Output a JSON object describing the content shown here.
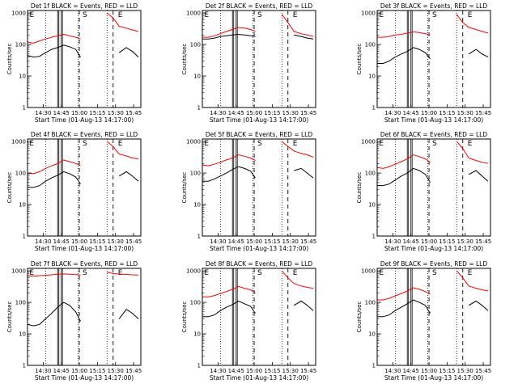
{
  "figure": {
    "xlabel": "Start Time (01-Aug-13 14:17:00)",
    "ylabel": "Counts/sec",
    "x_tick_labels": [
      "14:30",
      "14:45",
      "15:00",
      "15:15",
      "15:30",
      "15:45"
    ],
    "y_tick_labels": [
      "1",
      "10",
      "100",
      "1000"
    ]
  },
  "colors": {
    "events": "#000000",
    "lld": "#ff0000",
    "axis": "#000000"
  },
  "chart_data": [
    {
      "type": "line",
      "title": "Det 1f BLACK = Events, RED = LLD",
      "x": [
        "14:17",
        "14:22",
        "14:27",
        "14:32",
        "14:37",
        "14:42",
        "14:47",
        "14:52",
        "14:57",
        "15:01",
        "15:07",
        "15:13",
        "15:18",
        "15:23",
        "15:28",
        "15:33",
        "15:39",
        "15:44",
        "15:49"
      ],
      "series": [
        {
          "name": "Events",
          "values": [
            45,
            40,
            42,
            55,
            70,
            80,
            95,
            85,
            70,
            40,
            null,
            null,
            null,
            null,
            null,
            55,
            80,
            60,
            40
          ]
        },
        {
          "name": "LLD",
          "values": [
            120,
            110,
            130,
            150,
            170,
            190,
            210,
            190,
            170,
            150,
            null,
            null,
            null,
            1000,
            700,
            380,
            330,
            290,
            260
          ]
        }
      ],
      "xlim": [
        "14:17",
        "15:51"
      ],
      "ylim": [
        1,
        1200
      ],
      "yscale": "log",
      "vlines_dotted": [
        "14:32",
        "14:59",
        "15:23"
      ],
      "vlines_solid": [
        "14:42",
        "14:43",
        "14:45",
        "14:46"
      ],
      "vlines_dashed": [
        "15:00",
        "15:28"
      ],
      "annotations": [
        "E",
        "S",
        "E"
      ]
    },
    {
      "type": "line",
      "title": "Det 2f BLACK = Events, RED = LLD",
      "x": [
        "14:17",
        "14:22",
        "14:27",
        "14:32",
        "14:37",
        "14:42",
        "14:47",
        "14:52",
        "14:57",
        "15:01",
        "15:07",
        "15:13",
        "15:18",
        "15:23",
        "15:28",
        "15:33",
        "15:39",
        "15:44",
        "15:49"
      ],
      "series": [
        {
          "name": "Events",
          "values": [
            150,
            150,
            160,
            180,
            190,
            200,
            210,
            200,
            190,
            180,
            null,
            null,
            null,
            null,
            null,
            200,
            180,
            160,
            150
          ]
        },
        {
          "name": "LLD",
          "values": [
            170,
            170,
            190,
            220,
            260,
            300,
            350,
            330,
            300,
            260,
            null,
            null,
            null,
            900,
            500,
            260,
            220,
            200,
            180
          ]
        }
      ],
      "xlim": [
        "14:17",
        "15:51"
      ],
      "ylim": [
        1,
        1200
      ],
      "yscale": "log",
      "vlines_dotted": [
        "14:32",
        "14:59",
        "15:23"
      ],
      "vlines_solid": [
        "14:42",
        "14:43",
        "14:45",
        "14:46"
      ],
      "vlines_dashed": [
        "15:00",
        "15:28"
      ],
      "annotations": [
        "E",
        "S",
        "E"
      ]
    },
    {
      "type": "line",
      "title": "Det 3f BLACK = Events, RED = LLD",
      "x": [
        "14:17",
        "14:22",
        "14:27",
        "14:32",
        "14:37",
        "14:42",
        "14:47",
        "14:52",
        "14:57",
        "15:01",
        "15:07",
        "15:13",
        "15:18",
        "15:23",
        "15:28",
        "15:33",
        "15:39",
        "15:44",
        "15:49"
      ],
      "series": [
        {
          "name": "Events",
          "values": [
            25,
            25,
            30,
            40,
            50,
            60,
            80,
            70,
            55,
            35,
            null,
            null,
            null,
            null,
            null,
            50,
            70,
            50,
            40
          ]
        },
        {
          "name": "LLD",
          "values": [
            170,
            170,
            180,
            200,
            210,
            230,
            250,
            240,
            220,
            200,
            null,
            null,
            null,
            900,
            500,
            350,
            300,
            260,
            230
          ]
        }
      ],
      "xlim": [
        "14:17",
        "15:51"
      ],
      "ylim": [
        1,
        1200
      ],
      "yscale": "log",
      "vlines_dotted": [
        "14:32",
        "14:59",
        "15:23"
      ],
      "vlines_solid": [
        "14:42",
        "14:43",
        "14:45",
        "14:46"
      ],
      "vlines_dashed": [
        "15:00",
        "15:28"
      ],
      "annotations": [
        "E",
        "S",
        "E"
      ]
    },
    {
      "type": "line",
      "title": "Det 4f BLACK = Events, RED = LLD",
      "x": [
        "14:17",
        "14:22",
        "14:27",
        "14:32",
        "14:37",
        "14:42",
        "14:47",
        "14:52",
        "14:57",
        "15:01",
        "15:07",
        "15:13",
        "15:18",
        "15:23",
        "15:28",
        "15:33",
        "15:39",
        "15:44",
        "15:49"
      ],
      "series": [
        {
          "name": "Events",
          "values": [
            35,
            35,
            40,
            55,
            70,
            85,
            110,
            95,
            75,
            45,
            null,
            null,
            null,
            null,
            null,
            80,
            110,
            80,
            55
          ]
        },
        {
          "name": "LLD",
          "values": [
            100,
            95,
            110,
            140,
            170,
            200,
            260,
            230,
            200,
            170,
            null,
            null,
            null,
            1000,
            700,
            400,
            350,
            300,
            280
          ]
        }
      ],
      "xlim": [
        "14:17",
        "15:51"
      ],
      "ylim": [
        1,
        1200
      ],
      "yscale": "log",
      "vlines_dotted": [
        "14:32",
        "14:59",
        "15:23"
      ],
      "vlines_solid": [
        "14:42",
        "14:43",
        "14:45",
        "14:46"
      ],
      "vlines_dashed": [
        "15:00",
        "15:28"
      ],
      "annotations": [
        "E",
        "S",
        "E"
      ]
    },
    {
      "type": "line",
      "title": "Det 5f BLACK = Events, RED = LLD",
      "x": [
        "14:17",
        "14:22",
        "14:27",
        "14:32",
        "14:37",
        "14:42",
        "14:47",
        "14:52",
        "14:57",
        "15:01",
        "15:07",
        "15:13",
        "15:18",
        "15:23",
        "15:28",
        "15:33",
        "15:39",
        "15:44",
        "15:49"
      ],
      "series": [
        {
          "name": "Events",
          "values": [
            55,
            55,
            65,
            80,
            100,
            130,
            160,
            140,
            115,
            70,
            null,
            null,
            null,
            null,
            null,
            120,
            140,
            100,
            70
          ]
        },
        {
          "name": "LLD",
          "values": [
            180,
            170,
            190,
            220,
            260,
            300,
            380,
            340,
            300,
            250,
            null,
            null,
            null,
            1000,
            700,
            500,
            420,
            380,
            320
          ]
        }
      ],
      "xlim": [
        "14:17",
        "15:51"
      ],
      "ylim": [
        1,
        1200
      ],
      "yscale": "log",
      "vlines_dotted": [
        "14:32",
        "14:59",
        "15:23"
      ],
      "vlines_solid": [
        "14:42",
        "14:43",
        "14:45",
        "14:46"
      ],
      "vlines_dashed": [
        "15:00",
        "15:28"
      ],
      "annotations": [
        "E",
        "S",
        "E"
      ]
    },
    {
      "type": "line",
      "title": "Det 6f BLACK = Events, RED = LLD",
      "x": [
        "14:17",
        "14:22",
        "14:27",
        "14:32",
        "14:37",
        "14:42",
        "14:47",
        "14:52",
        "14:57",
        "15:01",
        "15:07",
        "15:13",
        "15:18",
        "15:23",
        "15:28",
        "15:33",
        "15:39",
        "15:44",
        "15:49"
      ],
      "series": [
        {
          "name": "Events",
          "values": [
            40,
            40,
            45,
            60,
            80,
            100,
            140,
            120,
            90,
            50,
            null,
            null,
            null,
            null,
            null,
            90,
            120,
            80,
            55
          ]
        },
        {
          "name": "LLD",
          "values": [
            150,
            140,
            160,
            190,
            230,
            280,
            380,
            330,
            280,
            220,
            null,
            null,
            null,
            1000,
            600,
            300,
            250,
            220,
            200
          ]
        }
      ],
      "xlim": [
        "14:17",
        "15:51"
      ],
      "ylim": [
        1,
        1200
      ],
      "yscale": "log",
      "vlines_dotted": [
        "14:32",
        "14:59",
        "15:23"
      ],
      "vlines_solid": [
        "14:42",
        "14:43",
        "14:45",
        "14:46"
      ],
      "vlines_dashed": [
        "15:00",
        "15:28"
      ],
      "annotations": [
        "E",
        "S",
        "E"
      ]
    },
    {
      "type": "line",
      "title": "Det 7f BLACK = Events, RED = LLD",
      "x": [
        "14:17",
        "14:22",
        "14:27",
        "14:32",
        "14:37",
        "14:42",
        "14:47",
        "14:52",
        "14:57",
        "15:01",
        "15:07",
        "15:13",
        "15:18",
        "15:23",
        "15:28",
        "15:33",
        "15:39",
        "15:44",
        "15:49"
      ],
      "series": [
        {
          "name": "Events",
          "values": [
            20,
            18,
            20,
            30,
            45,
            70,
            100,
            80,
            50,
            25,
            null,
            null,
            null,
            null,
            null,
            30,
            60,
            45,
            30
          ]
        },
        {
          "name": "LLD",
          "values": [
            700,
            680,
            700,
            720,
            750,
            780,
            800,
            780,
            760,
            740,
            null,
            null,
            null,
            900,
            820,
            790,
            770,
            750,
            740
          ]
        }
      ],
      "xlim": [
        "14:17",
        "15:51"
      ],
      "ylim": [
        1,
        1200
      ],
      "yscale": "log",
      "vlines_dotted": [
        "14:32",
        "14:59",
        "15:23"
      ],
      "vlines_solid": [
        "14:42",
        "14:43",
        "14:45",
        "14:46"
      ],
      "vlines_dashed": [
        "15:00",
        "15:28"
      ],
      "annotations": [
        "E",
        "S",
        "E"
      ]
    },
    {
      "type": "line",
      "title": "Det 8f BLACK = Events, RED = LLD",
      "x": [
        "14:17",
        "14:22",
        "14:27",
        "14:32",
        "14:37",
        "14:42",
        "14:47",
        "14:52",
        "14:57",
        "15:01",
        "15:07",
        "15:13",
        "15:18",
        "15:23",
        "15:28",
        "15:33",
        "15:39",
        "15:44",
        "15:49"
      ],
      "series": [
        {
          "name": "Events",
          "values": [
            35,
            35,
            40,
            55,
            70,
            85,
            110,
            90,
            75,
            45,
            null,
            null,
            null,
            null,
            null,
            80,
            110,
            80,
            55
          ]
        },
        {
          "name": "LLD",
          "values": [
            150,
            150,
            165,
            190,
            220,
            260,
            320,
            280,
            250,
            200,
            null,
            null,
            null,
            1000,
            600,
            400,
            330,
            300,
            280
          ]
        }
      ],
      "xlim": [
        "14:17",
        "15:51"
      ],
      "ylim": [
        1,
        1200
      ],
      "yscale": "log",
      "vlines_dotted": [
        "14:32",
        "14:59",
        "15:23"
      ],
      "vlines_solid": [
        "14:42",
        "14:43",
        "14:45",
        "14:46"
      ],
      "vlines_dashed": [
        "15:00",
        "15:28"
      ],
      "annotations": [
        "E",
        "S",
        "E"
      ]
    },
    {
      "type": "line",
      "title": "Det 9f BLACK = Events, RED = LLD",
      "x": [
        "14:17",
        "14:22",
        "14:27",
        "14:32",
        "14:37",
        "14:42",
        "14:47",
        "14:52",
        "14:57",
        "15:01",
        "15:07",
        "15:13",
        "15:18",
        "15:23",
        "15:28",
        "15:33",
        "15:39",
        "15:44",
        "15:49"
      ],
      "series": [
        {
          "name": "Events",
          "values": [
            35,
            35,
            40,
            55,
            70,
            90,
            120,
            100,
            80,
            45,
            null,
            null,
            null,
            null,
            null,
            80,
            110,
            80,
            55
          ]
        },
        {
          "name": "LLD",
          "values": [
            120,
            120,
            135,
            160,
            190,
            230,
            290,
            260,
            220,
            180,
            null,
            null,
            null,
            1000,
            600,
            330,
            280,
            250,
            230
          ]
        }
      ],
      "xlim": [
        "14:17",
        "15:51"
      ],
      "ylim": [
        1,
        1200
      ],
      "yscale": "log",
      "vlines_dotted": [
        "14:32",
        "14:59",
        "15:23"
      ],
      "vlines_solid": [
        "14:42",
        "14:43",
        "14:45",
        "14:46"
      ],
      "vlines_dashed": [
        "15:00",
        "15:28"
      ],
      "annotations": [
        "E",
        "S",
        "E"
      ]
    }
  ]
}
